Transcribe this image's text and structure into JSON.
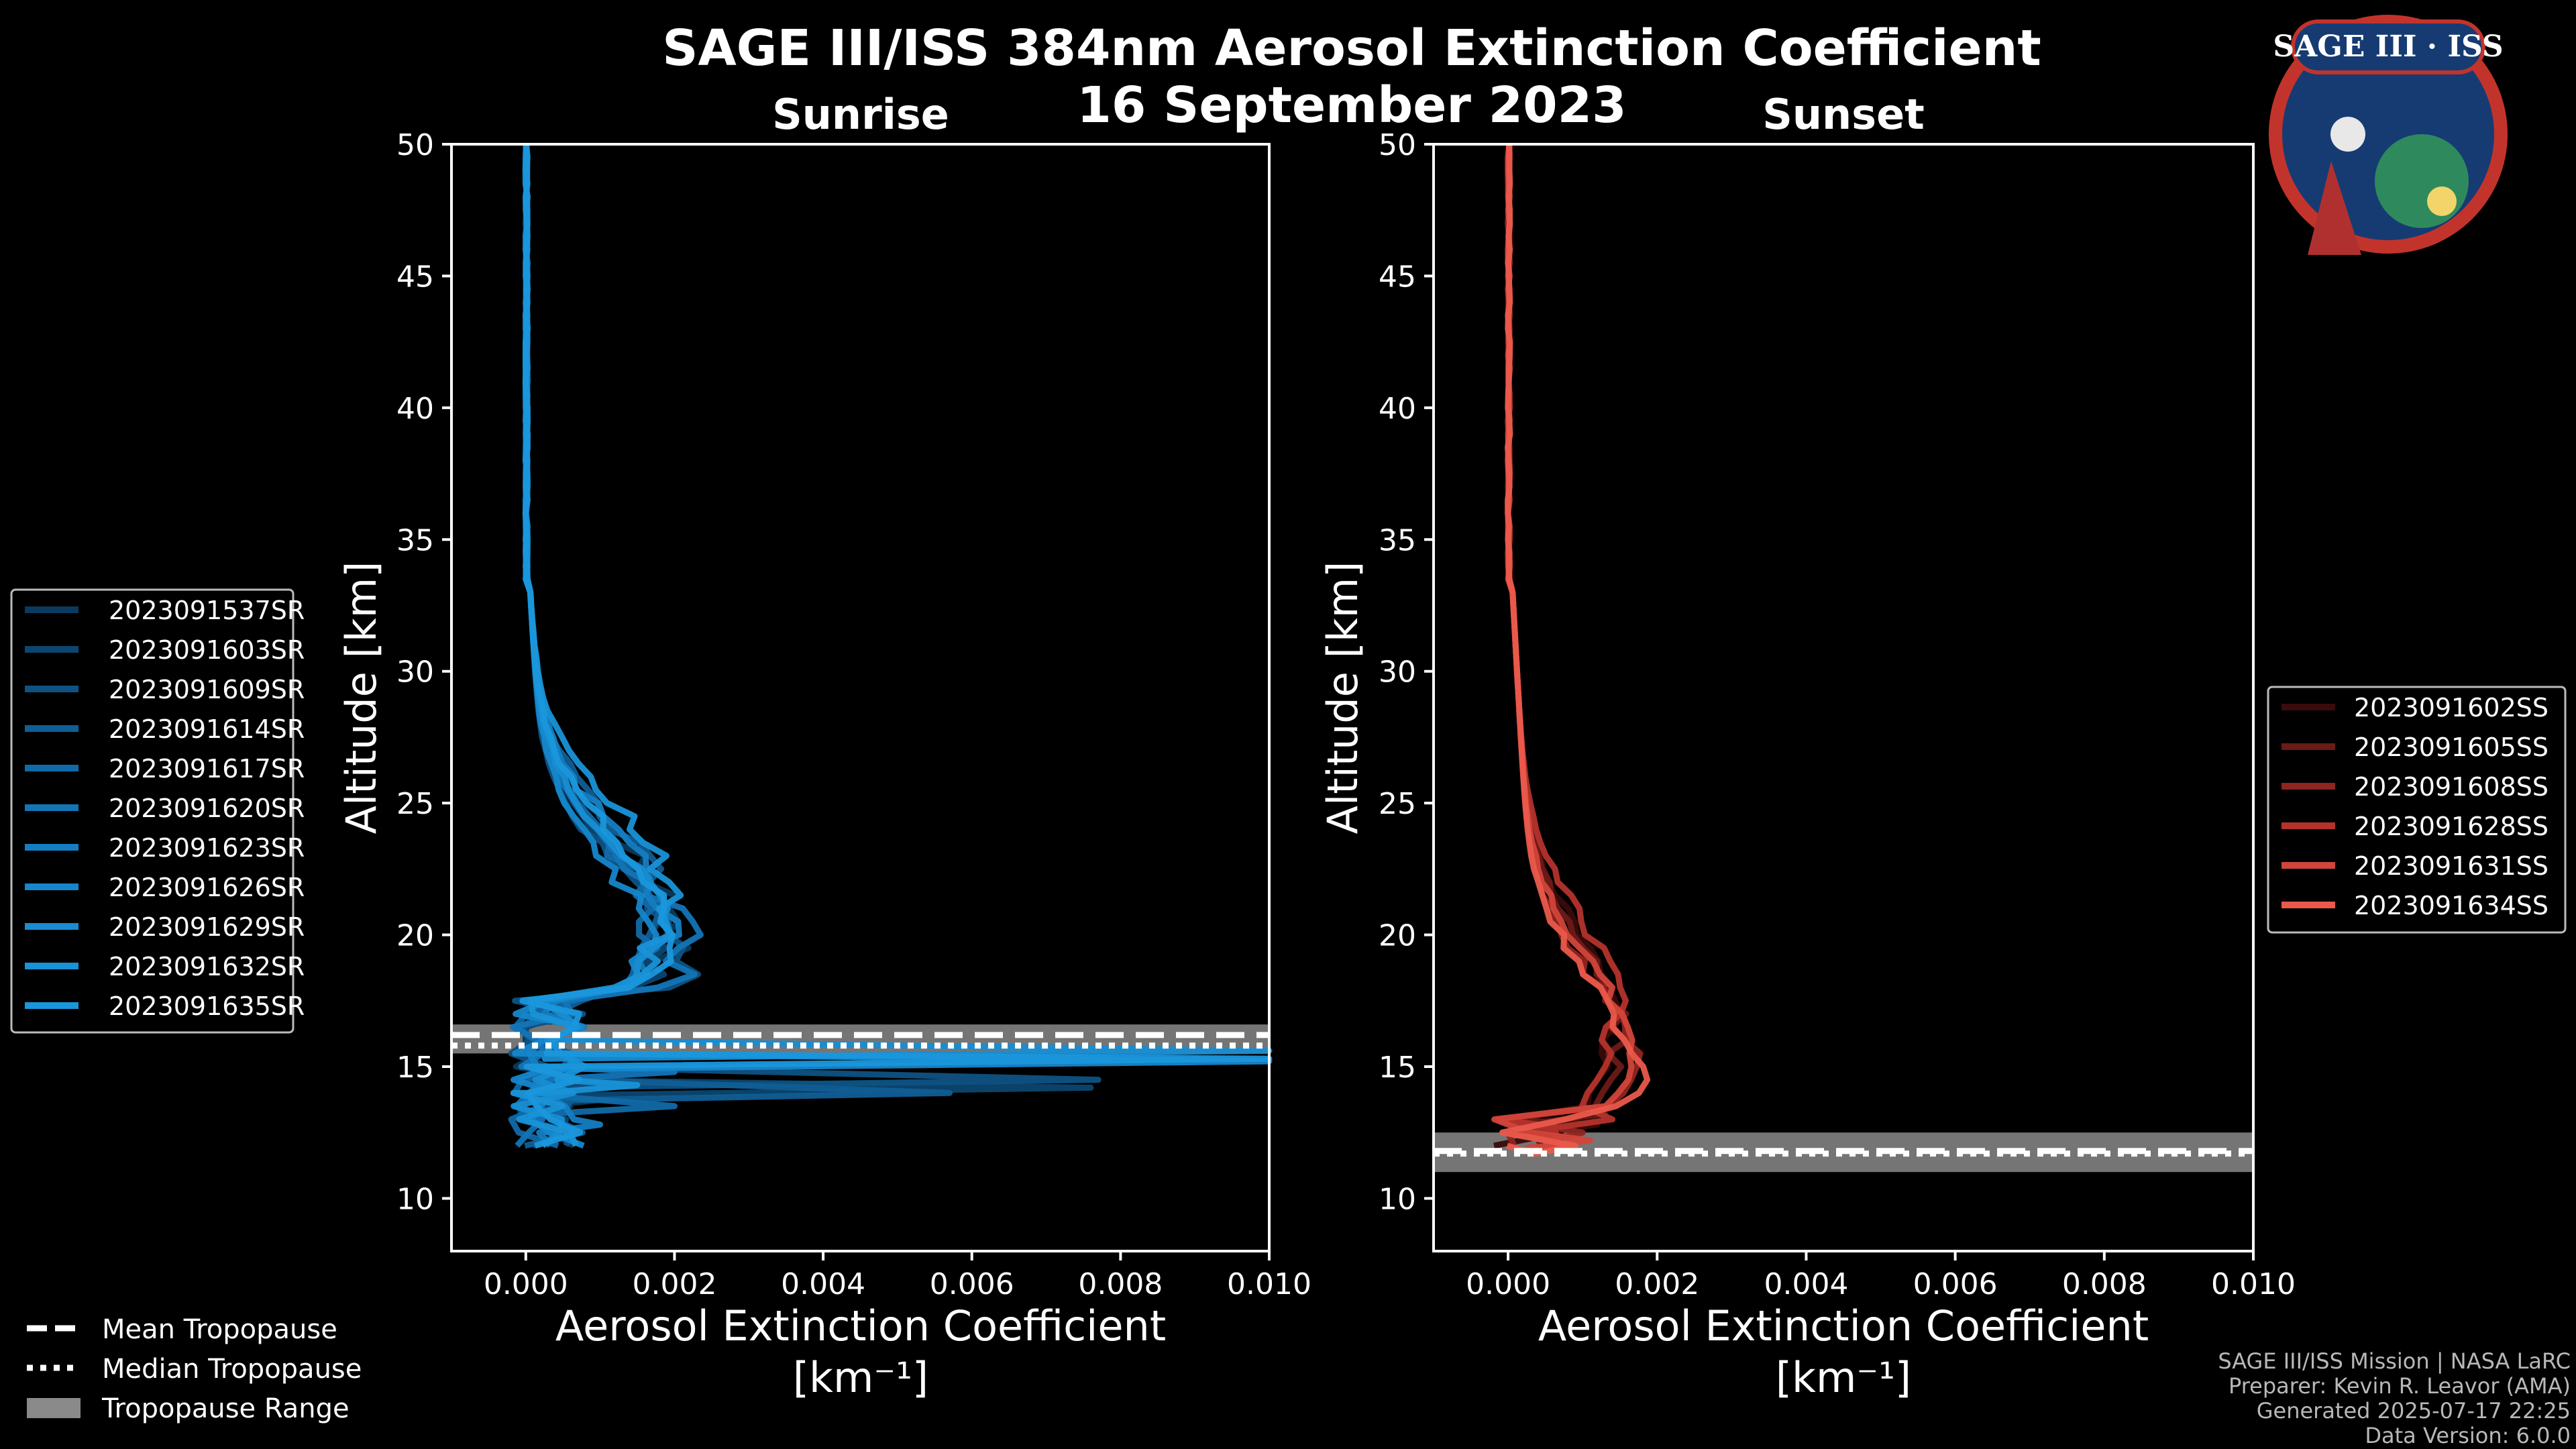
{
  "header": {
    "title": "SAGE III/ISS 384nm Aerosol Extinction Coefficient",
    "date": "16 September 2023"
  },
  "logo": {
    "text": "SAGE III · ISS"
  },
  "chart_data": [
    {
      "type": "line",
      "panel": "Sunrise",
      "title": "Sunrise",
      "xlabel": "Aerosol Extinction Coefficient",
      "xunit": "[km⁻¹]",
      "ylabel": "Altitude [km]",
      "xlim": [
        -0.001,
        0.01
      ],
      "ylim": [
        8,
        50
      ],
      "xticks": [
        0.0,
        0.002,
        0.004,
        0.006,
        0.008,
        0.01
      ],
      "xtick_labels": [
        "0.000",
        "0.002",
        "0.004",
        "0.006",
        "0.008",
        "0.010"
      ],
      "yticks": [
        10,
        15,
        20,
        25,
        30,
        35,
        40,
        45,
        50
      ],
      "tropopause": {
        "mean": 16.2,
        "median": 15.8,
        "range": [
          15.5,
          16.6
        ]
      },
      "legend_position": "left",
      "base_color": "#1b8fd2",
      "series": [
        {
          "name": "2023091537SR",
          "color": "#0a3a5c",
          "spike": [
            0.0012,
            13.8
          ],
          "bump": [
            0.0017,
            20.5
          ]
        },
        {
          "name": "2023091603SR",
          "color": "#0c4670",
          "spike": [
            0.0076,
            14.2
          ],
          "bump": [
            0.0015,
            20.0
          ]
        },
        {
          "name": "2023091609SR",
          "color": "#0e5283",
          "spike": [
            0.0077,
            14.5
          ],
          "bump": [
            0.0019,
            19.0
          ]
        },
        {
          "name": "2023091614SR",
          "color": "#105e96",
          "spike": [
            0.0057,
            14.0
          ],
          "bump": [
            0.0016,
            21.0
          ]
        },
        {
          "name": "2023091617SR",
          "color": "#116aa8",
          "spike": [
            0.002,
            13.5
          ],
          "bump": [
            0.0014,
            20.2
          ]
        },
        {
          "name": "2023091620SR",
          "color": "#1374b6",
          "spike": [
            0.002,
            14.8
          ],
          "bump": [
            0.0018,
            19.5
          ]
        },
        {
          "name": "2023091623SR",
          "color": "#157ec2",
          "spike": [
            0.001,
            12.8
          ],
          "bump": [
            0.0016,
            20.8
          ]
        },
        {
          "name": "2023091626SR",
          "color": "#1686cb",
          "spike": [
            0.01,
            15.2
          ],
          "bump": [
            0.0013,
            19.8
          ]
        },
        {
          "name": "2023091629SR",
          "color": "#188dd2",
          "spike": [
            0.01,
            15.6
          ],
          "bump": [
            0.0015,
            20.3
          ]
        },
        {
          "name": "2023091632SR",
          "color": "#1992d7",
          "spike": [
            0.0015,
            14.3
          ],
          "bump": [
            0.0017,
            21.5
          ]
        },
        {
          "name": "2023091635SR",
          "color": "#1a97dc",
          "spike": [
            0.01,
            15.3
          ],
          "bump": [
            0.0016,
            20.6
          ]
        }
      ]
    },
    {
      "type": "line",
      "panel": "Sunset",
      "title": "Sunset",
      "xlabel": "Aerosol Extinction Coefficient",
      "xunit": "[km⁻¹]",
      "ylabel": "Altitude [km]",
      "xlim": [
        -0.001,
        0.01
      ],
      "ylim": [
        8,
        50
      ],
      "xticks": [
        0.0,
        0.002,
        0.004,
        0.006,
        0.008,
        0.01
      ],
      "xtick_labels": [
        "0.000",
        "0.002",
        "0.004",
        "0.006",
        "0.008",
        "0.010"
      ],
      "yticks": [
        10,
        15,
        20,
        25,
        30,
        35,
        40,
        45,
        50
      ],
      "tropopause": {
        "mean": 11.8,
        "median": 11.7,
        "range": [
          11.0,
          12.5
        ]
      },
      "legend_position": "right",
      "base_color": "#e8574a",
      "series": [
        {
          "name": "2023091602SS",
          "color": "#3a0b0b",
          "spike": [
            0.0012,
            12.8
          ],
          "bump": [
            0.001,
            17.0
          ]
        },
        {
          "name": "2023091605SS",
          "color": "#6b1a17",
          "spike": [
            0.0013,
            13.2
          ],
          "bump": [
            0.0011,
            16.5
          ]
        },
        {
          "name": "2023091608SS",
          "color": "#8f2520",
          "spike": [
            0.001,
            12.5
          ],
          "bump": [
            0.0012,
            15.5
          ]
        },
        {
          "name": "2023091628SS",
          "color": "#b3332b",
          "spike": [
            0.0014,
            13.0
          ],
          "bump": [
            0.0011,
            17.5
          ]
        },
        {
          "name": "2023091631SS",
          "color": "#d2453a",
          "spike": [
            0.0011,
            12.2
          ],
          "bump": [
            0.0012,
            16.0
          ]
        },
        {
          "name": "2023091634SS",
          "color": "#ea5a4b",
          "spike": [
            0.0009,
            12.0
          ],
          "bump": [
            0.0013,
            15.0
          ]
        }
      ]
    }
  ],
  "tropopause_legend": {
    "mean": "Mean Tropopause",
    "median": "Median Tropopause",
    "range": "Tropopause Range"
  },
  "footer": {
    "line1": "SAGE III/ISS Mission | NASA LaRC",
    "line2": "Preparer: Kevin R. Leavor (AMA)",
    "line3": "Generated 2025-07-17 22:25",
    "line4": "Data Version: 6.0.0"
  }
}
